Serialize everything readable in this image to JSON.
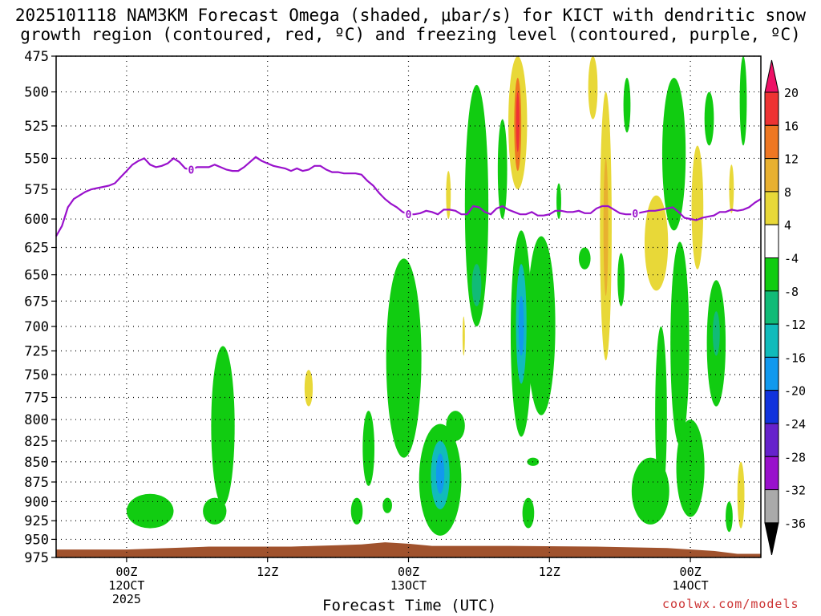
{
  "title": {
    "line1": "2025101118 NAM3KM Forecast Omega (shaded, μbar/s) for KICT with dendritic snow",
    "line2": "growth region (contoured, red, ºC) and freezing level (contoured, purple, ºC)"
  },
  "xlabel": "Forecast Time (UTC)",
  "credit": "coolwx.com/models",
  "chart_data": {
    "type": "heatmap",
    "title": "2025101118 NAM3KM Forecast Omega (shaded, μbar/s) for KICT with dendritic snow growth region (contoured, red, ºC) and freezing level (contoured, purple, ºC)",
    "xlabel": "Forecast Time (UTC)",
    "ylabel": "",
    "x_range_hours_from_init": [
      0,
      60
    ],
    "y_axis": {
      "scale": "log-pressure",
      "range": [
        975,
        475
      ],
      "units": "mb"
    },
    "y_ticks": [
      475,
      500,
      525,
      550,
      575,
      600,
      625,
      650,
      675,
      700,
      725,
      750,
      775,
      800,
      825,
      850,
      875,
      900,
      925,
      950,
      975
    ],
    "x_ticks": [
      {
        "hour": 6,
        "lines": [
          "00Z",
          "12OCT",
          "2025"
        ]
      },
      {
        "hour": 18,
        "lines": [
          "12Z"
        ]
      },
      {
        "hour": 30,
        "lines": [
          "00Z",
          "13OCT"
        ]
      },
      {
        "hour": 42,
        "lines": [
          "12Z"
        ]
      },
      {
        "hour": 54,
        "lines": [
          "00Z",
          "14OCT"
        ]
      }
    ],
    "colorbar": {
      "levels": [
        "20",
        "16",
        "12",
        "8",
        "4",
        "-4",
        "-8",
        "-12",
        "-16",
        "-20",
        "-24",
        "-28",
        "-32",
        "-36"
      ],
      "colors": [
        "#ee1166",
        "#ee3333",
        "#ee7722",
        "#e8b030",
        "#e8d838",
        "#ffffff",
        "#11cc11",
        "#11bb77",
        "#11bbbb",
        "#1199ee",
        "#1133dd",
        "#6622cc",
        "#9911cc",
        "#aaaaaa",
        "#000000"
      ]
    },
    "freezing_level": {
      "label": "0",
      "color": "#9911cc",
      "hours": [
        0,
        0.5,
        1,
        1.5,
        2,
        2.5,
        3,
        3.5,
        4,
        4.5,
        5,
        5.5,
        6,
        6.5,
        7,
        7.5,
        8,
        8.5,
        9,
        9.5,
        10,
        10.5,
        11,
        11.5,
        12,
        12.5,
        13,
        13.5,
        14,
        14.5,
        15,
        15.5,
        16,
        16.5,
        17,
        17.5,
        18,
        18.5,
        19,
        19.5,
        20,
        20.5,
        21,
        21.5,
        22,
        22.5,
        23,
        23.5,
        24,
        24.5,
        25,
        25.5,
        26,
        26.5,
        27,
        27.5,
        28,
        28.5,
        29,
        29.5,
        30,
        30.5,
        31,
        31.5,
        32,
        32.5,
        33,
        33.5,
        34,
        34.5,
        35,
        35.5,
        36,
        36.5,
        37,
        37.5,
        38,
        38.5,
        39,
        39.5,
        40,
        40.5,
        41,
        41.5,
        42,
        42.5,
        43,
        43.5,
        44,
        44.5,
        45,
        45.5,
        46,
        46.5,
        47,
        47.5,
        48,
        48.5,
        49,
        49.5,
        50,
        50.5,
        51,
        51.5,
        52,
        52.5,
        53,
        53.5,
        54,
        54.5,
        55,
        55.5,
        56,
        56.5,
        57,
        57.5,
        58,
        58.5,
        59,
        59.5,
        60
      ],
      "pressure": [
        615,
        606,
        590,
        583,
        580,
        577,
        575,
        574,
        573,
        572,
        570,
        565,
        560,
        555,
        552,
        550,
        555,
        557,
        556,
        554,
        550,
        553,
        558,
        559,
        557,
        557,
        557,
        555,
        557,
        559,
        560,
        560,
        557,
        553,
        549,
        552,
        554,
        556,
        557,
        558,
        560,
        558,
        560,
        559,
        556,
        556,
        559,
        561,
        561,
        562,
        562,
        562,
        563,
        568,
        572,
        578,
        583,
        587,
        590,
        594,
        596,
        596,
        595,
        593,
        594,
        596,
        592,
        592,
        593,
        596,
        596,
        589,
        590,
        594,
        596,
        591,
        589,
        592,
        594,
        596,
        596,
        594,
        597,
        597,
        596,
        593,
        593,
        594,
        594,
        593,
        595,
        595,
        591,
        589,
        589,
        592,
        595,
        596,
        596,
        595,
        594,
        593,
        593,
        592,
        591,
        590,
        594,
        599,
        600,
        601,
        599,
        598,
        597,
        594,
        594,
        592,
        593,
        592,
        590,
        586,
        583
      ]
    },
    "omega_regions": [
      {
        "hour_center": 8.0,
        "hour_halfwidth": 2.0,
        "p_top": 890,
        "p_bottom": 935,
        "value": -6
      },
      {
        "hour_center": 13.5,
        "hour_halfwidth": 1.0,
        "p_top": 895,
        "p_bottom": 930,
        "value": -6
      },
      {
        "hour_center": 14.2,
        "hour_halfwidth": 1.0,
        "p_top": 720,
        "p_bottom": 905,
        "value": -6
      },
      {
        "hour_center": 21.5,
        "hour_halfwidth": 0.35,
        "p_top": 745,
        "p_bottom": 785,
        "value": 5
      },
      {
        "hour_center": 26.6,
        "hour_halfwidth": 0.5,
        "p_top": 790,
        "p_bottom": 880,
        "value": -6
      },
      {
        "hour_center": 25.6,
        "hour_halfwidth": 0.5,
        "p_top": 895,
        "p_bottom": 930,
        "value": -6
      },
      {
        "hour_center": 28.2,
        "hour_halfwidth": 0.4,
        "p_top": 895,
        "p_bottom": 915,
        "value": -6
      },
      {
        "hour_center": 29.6,
        "hour_halfwidth": 1.5,
        "p_top": 635,
        "p_bottom": 845,
        "value": -6
      },
      {
        "hour_center": 32.7,
        "hour_halfwidth": 1.8,
        "p_top": 805,
        "p_bottom": 945,
        "value": -8
      },
      {
        "hour_center": 32.7,
        "hour_halfwidth": 0.8,
        "p_top": 825,
        "p_bottom": 910,
        "value": -14
      },
      {
        "hour_center": 32.7,
        "hour_halfwidth": 0.35,
        "p_top": 840,
        "p_bottom": 890,
        "value": -18
      },
      {
        "hour_center": 34.0,
        "hour_halfwidth": 0.8,
        "p_top": 790,
        "p_bottom": 825,
        "value": -6
      },
      {
        "hour_center": 35.8,
        "hour_halfwidth": 1.0,
        "p_top": 495,
        "p_bottom": 700,
        "value": -6
      },
      {
        "hour_center": 35.8,
        "hour_halfwidth": 0.4,
        "p_top": 640,
        "p_bottom": 680,
        "value": -10
      },
      {
        "hour_center": 33.4,
        "hour_halfwidth": 0.2,
        "p_top": 560,
        "p_bottom": 600,
        "value": 5
      },
      {
        "hour_center": 34.7,
        "hour_halfwidth": 0.1,
        "p_top": 690,
        "p_bottom": 730,
        "value": 5
      },
      {
        "hour_center": 38.0,
        "hour_halfwidth": 0.4,
        "p_top": 520,
        "p_bottom": 600,
        "value": -6
      },
      {
        "hour_center": 39.3,
        "hour_halfwidth": 0.8,
        "p_top": 475,
        "p_bottom": 575,
        "value": 6
      },
      {
        "hour_center": 39.3,
        "hour_halfwidth": 0.3,
        "p_top": 490,
        "p_bottom": 560,
        "value": 13
      },
      {
        "hour_center": 39.3,
        "hour_halfwidth": 0.15,
        "p_top": 500,
        "p_bottom": 545,
        "value": 17
      },
      {
        "hour_center": 39.6,
        "hour_halfwidth": 0.9,
        "p_top": 610,
        "p_bottom": 820,
        "value": -8
      },
      {
        "hour_center": 39.6,
        "hour_halfwidth": 0.45,
        "p_top": 640,
        "p_bottom": 760,
        "value": -14
      },
      {
        "hour_center": 39.6,
        "hour_halfwidth": 0.22,
        "p_top": 670,
        "p_bottom": 730,
        "value": -20
      },
      {
        "hour_center": 40.6,
        "hour_halfwidth": 0.5,
        "p_top": 845,
        "p_bottom": 855,
        "value": -6
      },
      {
        "hour_center": 40.2,
        "hour_halfwidth": 0.5,
        "p_top": 895,
        "p_bottom": 935,
        "value": -6
      },
      {
        "hour_center": 41.3,
        "hour_halfwidth": 1.2,
        "p_top": 615,
        "p_bottom": 795,
        "value": -6
      },
      {
        "hour_center": 42.8,
        "hour_halfwidth": 0.2,
        "p_top": 570,
        "p_bottom": 600,
        "value": -6
      },
      {
        "hour_center": 45.7,
        "hour_halfwidth": 0.4,
        "p_top": 475,
        "p_bottom": 520,
        "value": 5
      },
      {
        "hour_center": 46.8,
        "hour_halfwidth": 0.5,
        "p_top": 500,
        "p_bottom": 735,
        "value": 5
      },
      {
        "hour_center": 46.8,
        "hour_halfwidth": 0.2,
        "p_top": 550,
        "p_bottom": 670,
        "value": 10
      },
      {
        "hour_center": 45.0,
        "hour_halfwidth": 0.5,
        "p_top": 625,
        "p_bottom": 645,
        "value": -6
      },
      {
        "hour_center": 48.6,
        "hour_halfwidth": 0.3,
        "p_top": 490,
        "p_bottom": 530,
        "value": -6
      },
      {
        "hour_center": 48.1,
        "hour_halfwidth": 0.3,
        "p_top": 630,
        "p_bottom": 680,
        "value": -6
      },
      {
        "hour_center": 51.1,
        "hour_halfwidth": 1.0,
        "p_top": 580,
        "p_bottom": 665,
        "value": 5
      },
      {
        "hour_center": 51.5,
        "hour_halfwidth": 0.5,
        "p_top": 700,
        "p_bottom": 900,
        "value": -6
      },
      {
        "hour_center": 50.6,
        "hour_halfwidth": 1.6,
        "p_top": 845,
        "p_bottom": 930,
        "value": -8
      },
      {
        "hour_center": 52.6,
        "hour_halfwidth": 1.0,
        "p_top": 490,
        "p_bottom": 610,
        "value": -6
      },
      {
        "hour_center": 53.1,
        "hour_halfwidth": 0.8,
        "p_top": 620,
        "p_bottom": 830,
        "value": -6
      },
      {
        "hour_center": 54.0,
        "hour_halfwidth": 1.2,
        "p_top": 800,
        "p_bottom": 920,
        "value": -6
      },
      {
        "hour_center": 54.6,
        "hour_halfwidth": 0.5,
        "p_top": 540,
        "p_bottom": 645,
        "value": 5
      },
      {
        "hour_center": 55.6,
        "hour_halfwidth": 0.4,
        "p_top": 500,
        "p_bottom": 540,
        "value": -6
      },
      {
        "hour_center": 56.2,
        "hour_halfwidth": 0.8,
        "p_top": 655,
        "p_bottom": 785,
        "value": -6
      },
      {
        "hour_center": 56.2,
        "hour_halfwidth": 0.3,
        "p_top": 685,
        "p_bottom": 730,
        "value": -10
      },
      {
        "hour_center": 57.3,
        "hour_halfwidth": 0.3,
        "p_top": 900,
        "p_bottom": 940,
        "value": -6
      },
      {
        "hour_center": 58.3,
        "hour_halfwidth": 0.3,
        "p_top": 850,
        "p_bottom": 935,
        "value": 5
      },
      {
        "hour_center": 58.5,
        "hour_halfwidth": 0.3,
        "p_top": 475,
        "p_bottom": 540,
        "value": -6
      },
      {
        "hour_center": 57.5,
        "hour_halfwidth": 0.2,
        "p_top": 555,
        "p_bottom": 595,
        "value": 5
      }
    ],
    "terrain": {
      "color": "#a0522d",
      "hours": [
        0,
        6,
        13,
        20,
        22,
        24,
        26,
        28,
        30,
        32,
        38,
        46,
        52,
        56,
        58,
        60
      ],
      "pressure": [
        964,
        964,
        960,
        960,
        959,
        958,
        957,
        954,
        956,
        959,
        959,
        960,
        962,
        966,
        970,
        970
      ]
    },
    "grid": true
  }
}
